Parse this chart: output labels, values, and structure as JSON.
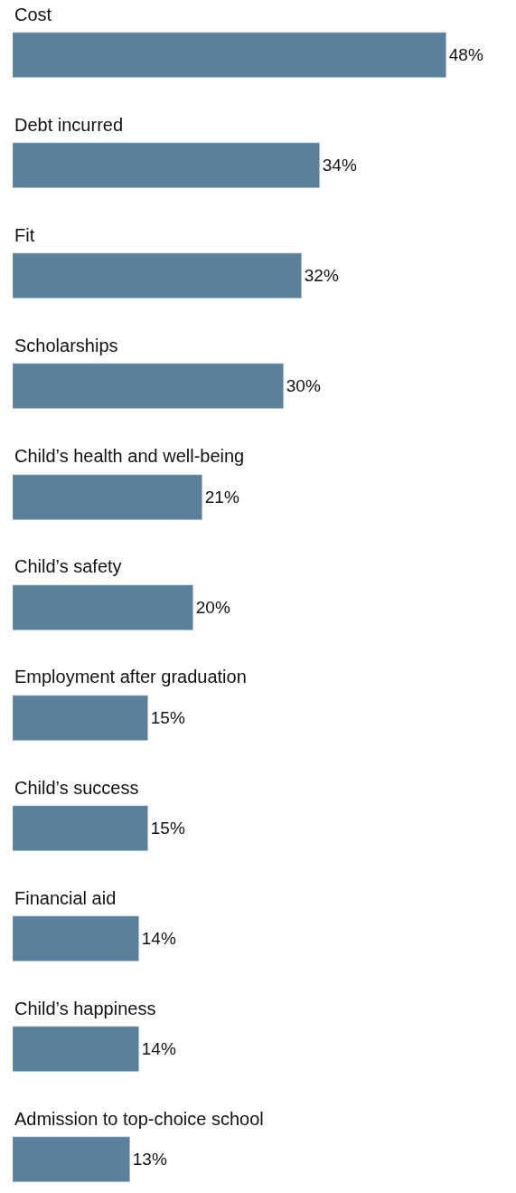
{
  "chart_data": {
    "type": "bar",
    "orientation": "horizontal",
    "categories": [
      "Cost",
      "Debt incurred",
      "Fit",
      "Scholarships",
      "Child’s health and well-being",
      "Child’s safety",
      "Employment after graduation",
      "Child’s success",
      "Financial aid",
      "Child’s happiness",
      "Admission to top-choice school"
    ],
    "values": [
      48,
      34,
      32,
      30,
      21,
      20,
      15,
      15,
      14,
      14,
      13
    ],
    "value_labels": [
      "48%",
      "34%",
      "32%",
      "30%",
      "21%",
      "20%",
      "15%",
      "15%",
      "14%",
      "14%",
      "13%"
    ],
    "color": "#5b809c",
    "legend": false
  }
}
